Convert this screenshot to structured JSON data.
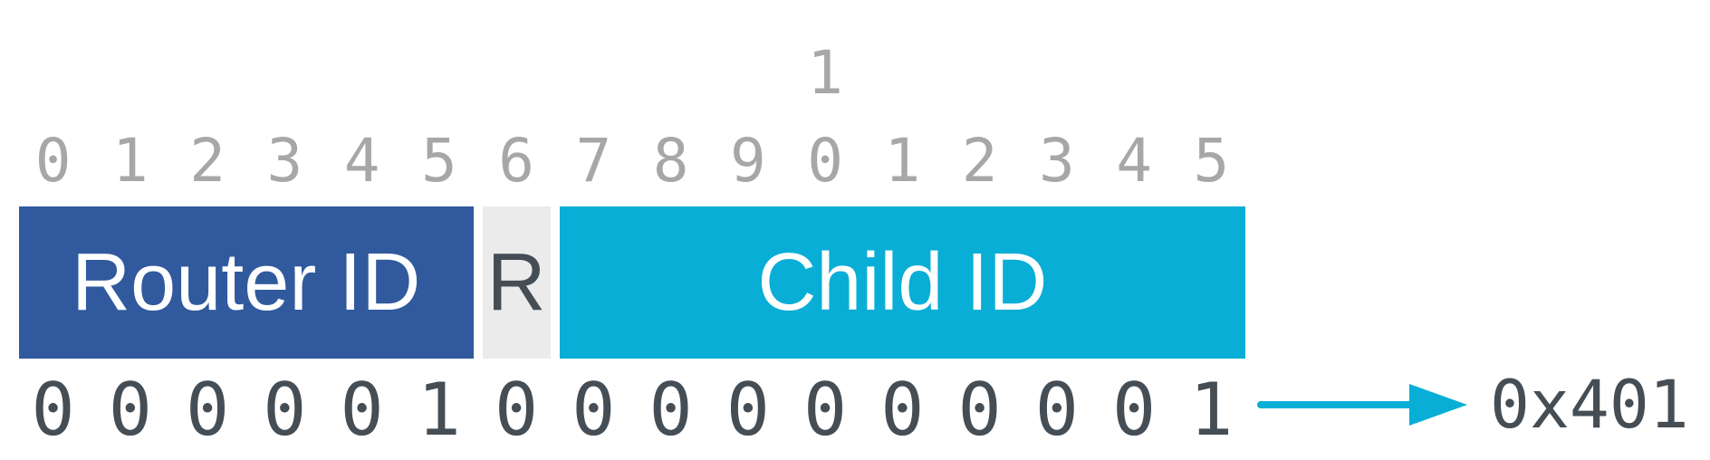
{
  "ruler": {
    "tens": [
      "",
      "",
      "",
      "",
      "",
      "",
      "",
      "",
      "",
      "",
      "1",
      "",
      "",
      "",
      "",
      ""
    ],
    "units": [
      "0",
      "1",
      "2",
      "3",
      "4",
      "5",
      "6",
      "7",
      "8",
      "9",
      "0",
      "1",
      "2",
      "3",
      "4",
      "5"
    ]
  },
  "fields": [
    {
      "label": "Router ID",
      "bit_start": 0,
      "bit_end": 5,
      "color": "#315A9E",
      "text_color": "#FFFFFF"
    },
    {
      "label": "R",
      "bit_start": 6,
      "bit_end": 6,
      "color": "#EBEBEB",
      "text_color": "#454D55"
    },
    {
      "label": "Child ID",
      "bit_start": 7,
      "bit_end": 15,
      "color": "#09AED6",
      "text_color": "#FFFFFF"
    }
  ],
  "binary": {
    "bits": [
      "0",
      "0",
      "0",
      "0",
      "0",
      "1",
      "0",
      "0",
      "0",
      "0",
      "0",
      "0",
      "0",
      "0",
      "0",
      "1"
    ]
  },
  "result": {
    "hex": "0x401",
    "arrow_color": "#09AED6"
  },
  "colors": {
    "background": "#FFFFFF",
    "ruler_text": "#A7A7A7",
    "binary_text": "#454D55"
  }
}
